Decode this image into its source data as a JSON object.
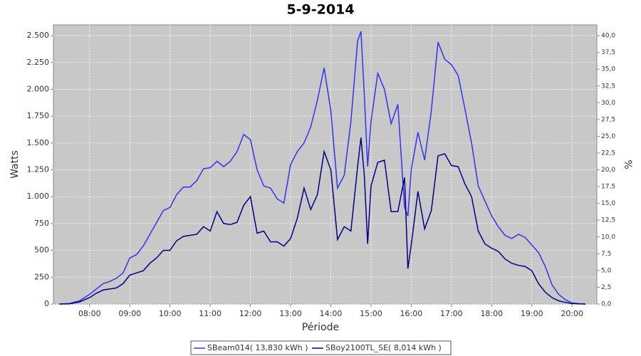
{
  "chart_data": {
    "type": "line",
    "title": "5-9-2014",
    "x_label": "Période",
    "y_label": "Watts",
    "y2_label": "%",
    "x": [
      "07:15",
      "07:30",
      "07:45",
      "08:00",
      "08:10",
      "08:20",
      "08:30",
      "08:40",
      "08:50",
      "09:00",
      "09:10",
      "09:20",
      "09:30",
      "09:40",
      "09:50",
      "10:00",
      "10:10",
      "10:20",
      "10:30",
      "10:40",
      "10:50",
      "11:00",
      "11:10",
      "11:20",
      "11:30",
      "11:40",
      "11:50",
      "12:00",
      "12:10",
      "12:20",
      "12:30",
      "12:40",
      "12:50",
      "13:00",
      "13:10",
      "13:20",
      "13:30",
      "13:40",
      "13:50",
      "14:00",
      "14:10",
      "14:20",
      "14:30",
      "14:40",
      "14:45",
      "14:50",
      "14:55",
      "15:00",
      "15:10",
      "15:20",
      "15:30",
      "15:40",
      "15:50",
      "15:55",
      "16:00",
      "16:10",
      "16:20",
      "16:30",
      "16:40",
      "16:50",
      "17:00",
      "17:10",
      "17:20",
      "17:30",
      "17:40",
      "17:50",
      "18:00",
      "18:10",
      "18:20",
      "18:30",
      "18:40",
      "18:50",
      "19:00",
      "19:10",
      "19:20",
      "19:30",
      "19:40",
      "19:50",
      "20:00",
      "20:10",
      "20:20"
    ],
    "series": [
      {
        "name": "SBeam014( 13,830 kWh )",
        "color": "#3333ee",
        "values": [
          0,
          5,
          30,
          90,
          140,
          190,
          210,
          240,
          290,
          430,
          460,
          540,
          650,
          760,
          870,
          900,
          1020,
          1090,
          1090,
          1150,
          1260,
          1270,
          1330,
          1280,
          1330,
          1420,
          1580,
          1530,
          1250,
          1100,
          1080,
          980,
          940,
          1300,
          1420,
          1500,
          1650,
          1900,
          2200,
          1800,
          1080,
          1200,
          1700,
          2450,
          2540,
          1950,
          1280,
          1700,
          2150,
          2000,
          1680,
          1860,
          900,
          820,
          1250,
          1600,
          1340,
          1800,
          2440,
          2280,
          2230,
          2130,
          1820,
          1500,
          1100,
          960,
          820,
          720,
          640,
          610,
          650,
          620,
          550,
          480,
          350,
          180,
          90,
          40,
          10,
          3,
          0
        ]
      },
      {
        "name": "SBoy2100TL_SE( 8,014 kWh )",
        "color": "#000088",
        "values": [
          0,
          2,
          20,
          60,
          100,
          130,
          140,
          150,
          190,
          270,
          290,
          310,
          380,
          430,
          500,
          500,
          590,
          630,
          640,
          650,
          720,
          680,
          860,
          750,
          740,
          760,
          920,
          1000,
          660,
          680,
          580,
          580,
          540,
          610,
          800,
          1080,
          880,
          1020,
          1420,
          1250,
          600,
          720,
          680,
          1280,
          1550,
          1200,
          560,
          1100,
          1320,
          1340,
          860,
          860,
          1180,
          330,
          550,
          1050,
          700,
          870,
          1380,
          1400,
          1290,
          1280,
          1120,
          1000,
          680,
          560,
          520,
          490,
          420,
          380,
          360,
          350,
          310,
          190,
          110,
          60,
          30,
          15,
          5,
          1,
          0
        ]
      }
    ],
    "xlim": [
      "07:06",
      "20:37"
    ],
    "xticks": [
      "08:00",
      "09:00",
      "10:00",
      "11:00",
      "12:00",
      "13:00",
      "14:00",
      "15:00",
      "16:00",
      "17:00",
      "18:00",
      "19:00",
      "20:00"
    ],
    "ylim": [
      0,
      2600
    ],
    "yticks": [
      0,
      250,
      500,
      750,
      {
        "value": 1000,
        "label": "1.000"
      },
      {
        "value": 1250,
        "label": "1.250"
      },
      {
        "value": 1500,
        "label": "1.500"
      },
      {
        "value": 1750,
        "label": "1.750"
      },
      {
        "value": 2000,
        "label": "2.000"
      },
      {
        "value": 2250,
        "label": "2.250"
      },
      {
        "value": 2500,
        "label": "2.500"
      }
    ],
    "y2lim": [
      0,
      41.6
    ],
    "y2ticks": [
      {
        "value": 0,
        "label": "0,0"
      },
      {
        "value": 2.5,
        "label": "2,5"
      },
      {
        "value": 5,
        "label": "5,0"
      },
      {
        "value": 7.5,
        "label": "7,5"
      },
      {
        "value": 10,
        "label": "10,0"
      },
      {
        "value": 12.5,
        "label": "12,5"
      },
      {
        "value": 15,
        "label": "15,0"
      },
      {
        "value": 17.5,
        "label": "17,5"
      },
      {
        "value": 20,
        "label": "20,0"
      },
      {
        "value": 22.5,
        "label": "22,5"
      },
      {
        "value": 25,
        "label": "25,0"
      },
      {
        "value": 27.5,
        "label": "27,5"
      },
      {
        "value": 30,
        "label": "30,0"
      },
      {
        "value": 32.5,
        "label": "32,5"
      },
      {
        "value": 35,
        "label": "35,0"
      },
      {
        "value": 37.5,
        "label": "37,5"
      },
      {
        "value": 40,
        "label": "40,0"
      }
    ],
    "grid": true,
    "legend": "bottom"
  }
}
